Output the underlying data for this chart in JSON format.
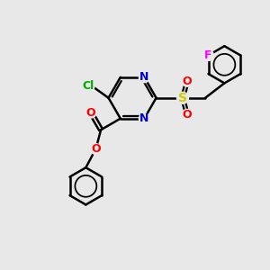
{
  "bg_color": "#e8e8e8",
  "bond_color": "#000000",
  "atom_colors": {
    "N": "#0000cc",
    "O": "#ff0000",
    "Cl": "#00aa00",
    "S": "#cccc00",
    "F": "#ff00ff",
    "C": "#000000"
  },
  "figsize": [
    3.0,
    3.0
  ],
  "dpi": 100,
  "xlim": [
    0,
    10
  ],
  "ylim": [
    0,
    10
  ]
}
